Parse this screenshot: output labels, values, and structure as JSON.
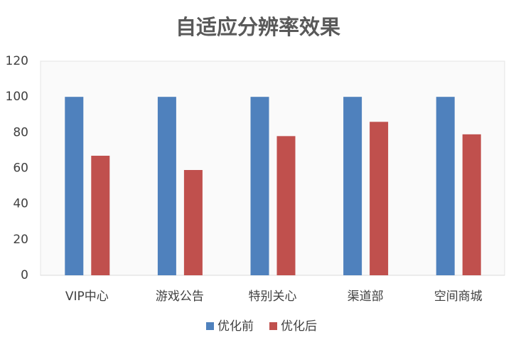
{
  "chart_data": {
    "type": "bar",
    "title": "自适应分辨率效果",
    "categories": [
      "VIP中心",
      "游戏公告",
      "特别关心",
      "渠道部",
      "空间商城"
    ],
    "series": [
      {
        "name": "优化前",
        "color": "#4f81bd",
        "values": [
          100,
          100,
          100,
          100,
          100
        ]
      },
      {
        "name": "优化后",
        "color": "#c0504d",
        "values": [
          67,
          59,
          78,
          86,
          79
        ]
      }
    ],
    "ylim": [
      0,
      120
    ],
    "yticks": [
      0,
      20,
      40,
      60,
      80,
      100,
      120
    ],
    "grid": false,
    "legend": "bottom"
  }
}
